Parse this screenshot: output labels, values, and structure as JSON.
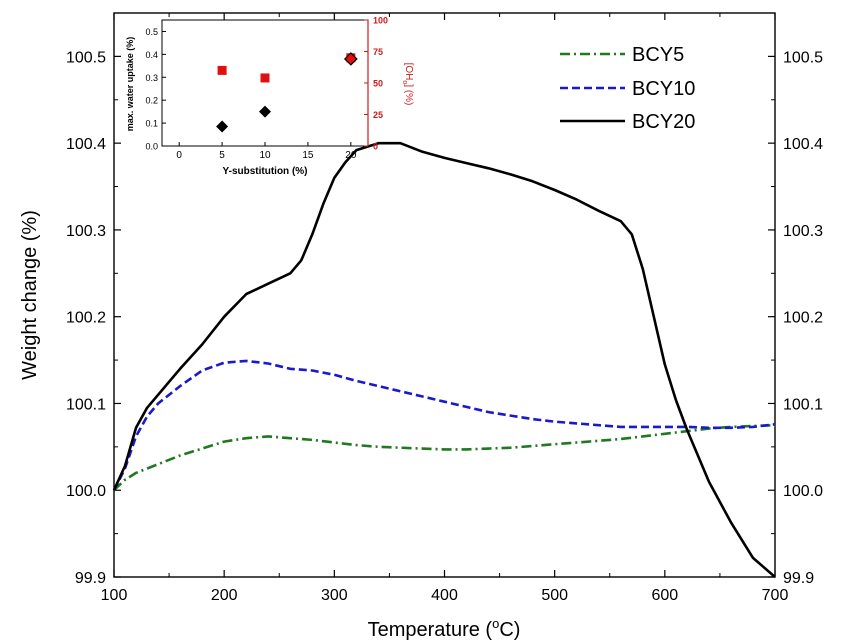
{
  "chart_data": [
    {
      "type": "line",
      "xlabel": "Temperature (°C)",
      "xlabel_parts": {
        "prefix": "Temperature (",
        "superscript": "o",
        "unit": "C)"
      },
      "ylabel": "Weight change (%)",
      "xlim": [
        100,
        700
      ],
      "ylim": [
        99.9,
        100.55
      ],
      "x_ticks": [
        100,
        200,
        300,
        400,
        500,
        600,
        700
      ],
      "y_ticks": [
        99.9,
        100.0,
        100.1,
        100.2,
        100.3,
        100.4,
        100.5
      ],
      "x_tick_labels": [
        "100",
        "200",
        "300",
        "400",
        "500",
        "600",
        "700"
      ],
      "y_tick_labels": [
        "99.9",
        "100.0",
        "100.1",
        "100.2",
        "100.3",
        "100.4",
        "100.5"
      ],
      "mirror_right_axis": true,
      "grid": false,
      "legend_position": "top-right",
      "series": [
        {
          "name": "BCY5",
          "color": "#1f7a1f",
          "style": "dash-dot",
          "x": [
            100,
            110,
            120,
            140,
            160,
            180,
            200,
            220,
            240,
            260,
            280,
            300,
            320,
            340,
            360,
            380,
            400,
            420,
            440,
            460,
            480,
            500,
            520,
            540,
            560,
            580,
            600,
            620,
            640,
            660,
            680,
            700
          ],
          "y": [
            100.0,
            100.012,
            100.02,
            100.03,
            100.04,
            100.048,
            100.056,
            100.06,
            100.062,
            100.06,
            100.058,
            100.055,
            100.052,
            100.05,
            100.049,
            100.048,
            100.047,
            100.047,
            100.048,
            100.049,
            100.051,
            100.053,
            100.055,
            100.057,
            100.059,
            100.062,
            100.065,
            100.068,
            100.071,
            100.073,
            100.074,
            100.075
          ]
        },
        {
          "name": "BCY10",
          "color": "#1a1acc",
          "style": "dashed",
          "x": [
            100,
            110,
            120,
            130,
            140,
            160,
            180,
            200,
            220,
            240,
            260,
            280,
            300,
            320,
            340,
            360,
            380,
            400,
            420,
            440,
            460,
            480,
            500,
            520,
            540,
            560,
            580,
            600,
            620,
            640,
            660,
            680,
            700
          ],
          "y": [
            100.0,
            100.025,
            100.062,
            100.085,
            100.1,
            100.12,
            100.138,
            100.147,
            100.149,
            100.146,
            100.14,
            100.138,
            100.133,
            100.126,
            100.12,
            100.114,
            100.108,
            100.102,
            100.096,
            100.09,
            100.086,
            100.082,
            100.079,
            100.077,
            100.075,
            100.073,
            100.073,
            100.073,
            100.073,
            100.072,
            100.072,
            100.073,
            100.076
          ]
        },
        {
          "name": "BCY20",
          "color": "#000000",
          "style": "solid",
          "x": [
            100,
            110,
            120,
            130,
            140,
            160,
            180,
            200,
            220,
            240,
            260,
            270,
            280,
            290,
            300,
            310,
            320,
            340,
            360,
            380,
            400,
            420,
            440,
            460,
            480,
            500,
            520,
            540,
            560,
            570,
            580,
            590,
            600,
            610,
            620,
            630,
            640,
            660,
            680,
            700
          ],
          "y": [
            100.0,
            100.028,
            100.072,
            100.095,
            100.11,
            100.14,
            100.168,
            100.2,
            100.226,
            100.238,
            100.25,
            100.265,
            100.295,
            100.33,
            100.36,
            100.378,
            100.392,
            100.4,
            100.4,
            100.39,
            100.383,
            100.377,
            100.371,
            100.364,
            100.356,
            100.346,
            100.335,
            100.322,
            100.31,
            100.295,
            100.255,
            100.2,
            100.145,
            100.104,
            100.07,
            100.04,
            100.01,
            99.963,
            99.922,
            99.9
          ]
        }
      ]
    },
    {
      "type": "scatter",
      "position": "inset",
      "xlabel": "Y-substitution (%)",
      "ylabel": "max. water uptake (%)",
      "ylabel_right": "[OH",
      "ylabel_right_subscript": "o",
      "ylabel_right_suffix": "] (%)",
      "xlim": [
        -2,
        22
      ],
      "ylim": [
        0,
        0.55
      ],
      "ylim_right": [
        0,
        100
      ],
      "x_ticks": [
        0,
        5,
        10,
        15,
        20
      ],
      "y_ticks": [
        0.0,
        0.1,
        0.2,
        0.3,
        0.4,
        0.5
      ],
      "y_ticks_right": [
        0,
        25,
        50,
        75,
        100
      ],
      "x_tick_labels": [
        "0",
        "5",
        "10",
        "15",
        "20"
      ],
      "y_tick_labels": [
        "0.0",
        "0.1",
        "0.2",
        "0.3",
        "0.4",
        "0.5"
      ],
      "y_tick_labels_right": [
        "0",
        "25",
        "50",
        "75",
        "100"
      ],
      "right_axis_color": "#cc1a1a",
      "series": [
        {
          "axis": "left",
          "marker": "diamond",
          "color": "#000000",
          "x": [
            5,
            10,
            20
          ],
          "y": [
            0.085,
            0.15,
            0.38
          ]
        },
        {
          "axis": "right",
          "marker": "square",
          "color": "#e01010",
          "x": [
            5,
            10,
            20
          ],
          "y": [
            60,
            54,
            70
          ]
        }
      ]
    }
  ]
}
